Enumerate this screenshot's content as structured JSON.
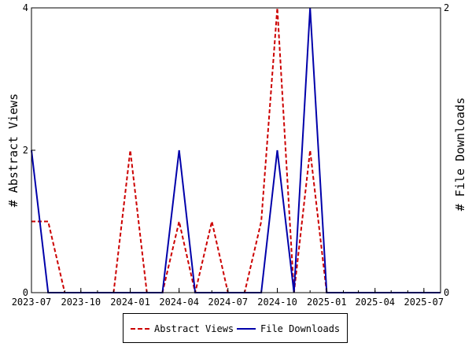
{
  "chart_data": {
    "type": "line",
    "ylabel_left": "# Abstract Views",
    "ylabel_right": "# File Downloads",
    "x_tick_labels": [
      "2023-07",
      "2023-10",
      "2024-01",
      "2024-04",
      "2024-07",
      "2024-10",
      "2025-01",
      "2025-04",
      "2025-07"
    ],
    "x_tick_dates": [
      "2023-07-01",
      "2023-10-01",
      "2024-01-01",
      "2024-04-01",
      "2024-07-01",
      "2024-10-01",
      "2025-01-01",
      "2025-04-01",
      "2025-07-01"
    ],
    "xlim": [
      "2023-07-01",
      "2025-08-01"
    ],
    "ylim_left": [
      0,
      4
    ],
    "ylim_right": [
      0,
      2
    ],
    "y_ticks_left": [
      "0",
      "2",
      "4"
    ],
    "y_ticks_right": [
      "0",
      "2"
    ],
    "months": [
      "2023-07",
      "2023-08",
      "2023-09",
      "2023-10",
      "2023-11",
      "2023-12",
      "2024-01",
      "2024-02",
      "2024-03",
      "2024-04",
      "2024-05",
      "2024-06",
      "2024-07",
      "2024-08",
      "2024-09",
      "2024-10",
      "2024-11",
      "2024-12",
      "2025-01",
      "2025-02",
      "2025-03",
      "2025-04",
      "2025-05",
      "2025-06",
      "2025-07",
      "2025-08"
    ],
    "series": [
      {
        "name": "Abstract Views",
        "axis": "left",
        "color": "#cc0000",
        "dash": true,
        "values": [
          1,
          1,
          0,
          0,
          0,
          0,
          2,
          0,
          0,
          1,
          0,
          1,
          0,
          0,
          1,
          4,
          0,
          2,
          0,
          0,
          0,
          0,
          0,
          0,
          0,
          0
        ]
      },
      {
        "name": "File Downloads",
        "axis": "right",
        "color": "#0000aa",
        "dash": false,
        "values": [
          1,
          0,
          0,
          0,
          0,
          0,
          0,
          0,
          0,
          1,
          0,
          0,
          0,
          0,
          0,
          1,
          0,
          2,
          0,
          0,
          0,
          0,
          0,
          0,
          0,
          0
        ]
      }
    ],
    "legend": [
      "Abstract Views",
      "File Downloads"
    ],
    "legend_position": "bottom-center",
    "grid": false
  }
}
